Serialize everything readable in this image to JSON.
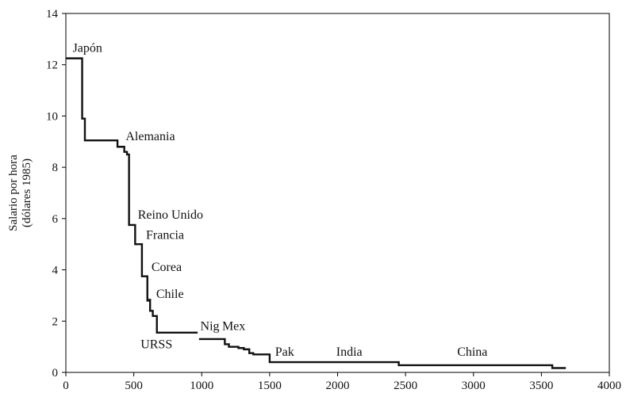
{
  "chart_data": {
    "type": "line",
    "ylabel": [
      "Salario por hora",
      "(dólares 1985)"
    ],
    "xlabel": "",
    "title": "",
    "xlim": [
      0,
      4000
    ],
    "ylim": [
      0,
      14
    ],
    "xticks": [
      0,
      500,
      1000,
      1500,
      2000,
      2500,
      3000,
      3500,
      4000
    ],
    "yticks": [
      0,
      2,
      4,
      6,
      8,
      10,
      12,
      14
    ],
    "grid": false,
    "segments": [
      [
        [
          0,
          12.25
        ],
        [
          120,
          12.25
        ],
        [
          120,
          9.9
        ],
        [
          140,
          9.9
        ],
        [
          140,
          9.05
        ],
        [
          380,
          9.05
        ],
        [
          380,
          8.8
        ],
        [
          430,
          8.8
        ],
        [
          430,
          8.6
        ],
        [
          450,
          8.6
        ],
        [
          450,
          8.5
        ],
        [
          465,
          8.5
        ],
        [
          465,
          5.75
        ],
        [
          510,
          5.75
        ],
        [
          510,
          5.0
        ],
        [
          560,
          5.0
        ],
        [
          560,
          3.75
        ],
        [
          600,
          3.75
        ],
        [
          600,
          2.8
        ],
        [
          620,
          2.8
        ],
        [
          620,
          2.4
        ],
        [
          640,
          2.4
        ],
        [
          640,
          2.2
        ],
        [
          670,
          2.2
        ],
        [
          670,
          1.55
        ],
        [
          970,
          1.55
        ]
      ],
      [
        [
          980,
          1.3
        ],
        [
          1170,
          1.3
        ],
        [
          1170,
          1.1
        ],
        [
          1200,
          1.1
        ],
        [
          1200,
          1.0
        ],
        [
          1270,
          1.0
        ],
        [
          1270,
          0.95
        ],
        [
          1310,
          0.95
        ],
        [
          1310,
          0.9
        ],
        [
          1350,
          0.9
        ],
        [
          1350,
          0.75
        ],
        [
          1380,
          0.75
        ],
        [
          1380,
          0.7
        ],
        [
          1500,
          0.7
        ],
        [
          1500,
          0.4
        ],
        [
          2450,
          0.4
        ],
        [
          2450,
          0.28
        ],
        [
          3580,
          0.28
        ],
        [
          3580,
          0.17
        ],
        [
          3680,
          0.17
        ]
      ]
    ],
    "annotations": [
      {
        "text": "Japón",
        "x": 50,
        "y": 12.5
      },
      {
        "text": "Alemania",
        "x": 440,
        "y": 9.05
      },
      {
        "text": "Reino Unido",
        "x": 530,
        "y": 6.0
      },
      {
        "text": "Francia",
        "x": 590,
        "y": 5.2
      },
      {
        "text": "Corea",
        "x": 630,
        "y": 3.95
      },
      {
        "text": "Chile",
        "x": 665,
        "y": 2.9
      },
      {
        "text": "URSS",
        "x": 550,
        "y": 0.95
      },
      {
        "text": "Nig",
        "x": 990,
        "y": 1.65
      },
      {
        "text": "Mex",
        "x": 1150,
        "y": 1.65
      },
      {
        "text": "Pak",
        "x": 1540,
        "y": 0.65
      },
      {
        "text": "India",
        "x": 1990,
        "y": 0.65
      },
      {
        "text": "China",
        "x": 2880,
        "y": 0.65
      }
    ],
    "chile_marker": {
      "x": [
        595,
        628
      ],
      "y": 2.85
    }
  }
}
